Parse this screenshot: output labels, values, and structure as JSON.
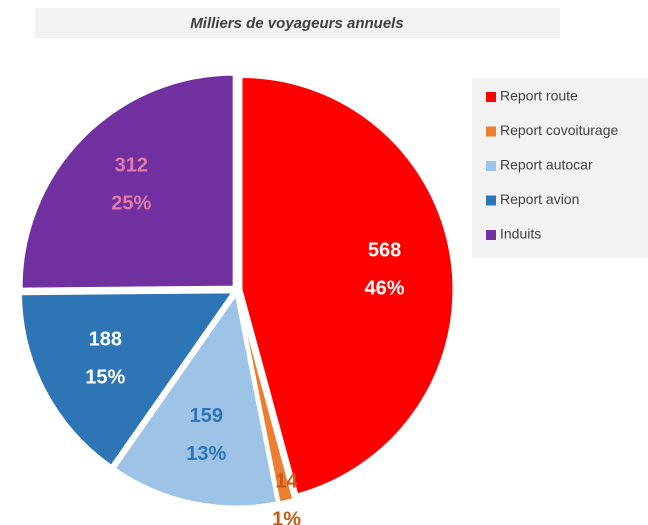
{
  "chart_data": {
    "type": "pie",
    "title": "Milliers de voyageurs annuels",
    "categories": [
      "Report route",
      "Report covoiturage",
      "Report autocar",
      "Report avion",
      "Induits"
    ],
    "values": [
      568,
      14,
      159,
      188,
      312
    ],
    "percent_labels": [
      "46%",
      "1%",
      "13%",
      "15%",
      "25%"
    ],
    "colors": [
      "#ff0000",
      "#ed7d31",
      "#9dc3e6",
      "#2e75b6",
      "#7030a0"
    ],
    "label_colors": [
      "#ffffff",
      "#c55a11",
      "#2e75b6",
      "#ffffff",
      "#e07ba6"
    ],
    "legend": "right"
  }
}
